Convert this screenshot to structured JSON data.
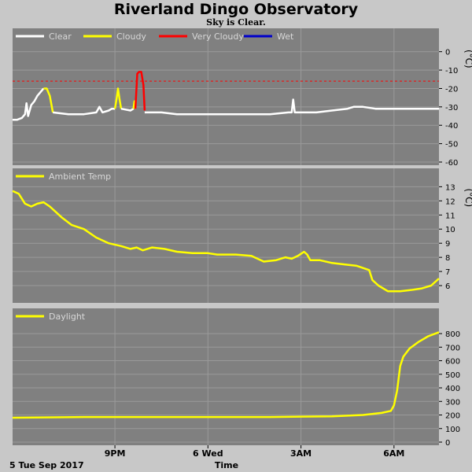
{
  "header": {
    "title": "Riverland Dingo Observatory",
    "subtitle": "Sky is Clear."
  },
  "footer": {
    "date_label": "5 Tue Sep 2017",
    "xlabel": "Time"
  },
  "x_ticks": [
    {
      "label": "9PM",
      "hour": 3
    },
    {
      "label": "6 Wed",
      "hour": 6
    },
    {
      "label": "3AM",
      "hour": 9
    },
    {
      "label": "6AM",
      "hour": 12
    }
  ],
  "x_range_hours": [
    -0.3,
    13.45
  ],
  "colors": {
    "panel_bg": "#808080",
    "grid": "#9a9a9a",
    "clear": "#ffffff",
    "cloudy": "#ffff00",
    "very_cloudy": "#ff0000",
    "wet": "#0000cc",
    "threshold": "#ff0000"
  },
  "chart_data": [
    {
      "type": "line",
      "panel": "cloud",
      "legend": [
        "Clear",
        "Cloudy",
        "Very Cloudy",
        "Wet"
      ],
      "ylabel": "(°C)",
      "ylim": [
        -60,
        5
      ],
      "yticks": [
        0,
        -10,
        -20,
        -30,
        -40,
        -50,
        -60
      ],
      "threshold": -16,
      "series": [
        {
          "name": "Clear",
          "color": "#ffffff",
          "x": [
            -0.3,
            -0.15,
            0,
            0.1,
            0.15,
            0.2,
            0.3,
            0.4,
            0.5,
            0.6,
            0.7
          ],
          "y": [
            -37,
            -37,
            -36,
            -34,
            -28,
            -35,
            -29,
            -27,
            -24,
            -22,
            -20
          ]
        },
        {
          "name": "Cloudy",
          "color": "#ffff00",
          "x": [
            0.7,
            0.8,
            0.9,
            1.0
          ],
          "y": [
            -20,
            -20,
            -24,
            -33
          ]
        },
        {
          "name": "Clear",
          "color": "#ffffff",
          "x": [
            1.0,
            1.5,
            2.0,
            2.4,
            2.5,
            2.6,
            2.8,
            2.9,
            3.0
          ],
          "y": [
            -33,
            -34,
            -34,
            -33,
            -30,
            -33,
            -32,
            -31,
            -31
          ]
        },
        {
          "name": "Cloudy",
          "color": "#ffff00",
          "x": [
            3.0,
            3.05,
            3.1,
            3.15,
            3.2
          ],
          "y": [
            -31,
            -26,
            -20,
            -26,
            -31
          ]
        },
        {
          "name": "Clear",
          "color": "#ffffff",
          "x": [
            3.2,
            3.5,
            3.6
          ],
          "y": [
            -31,
            -32,
            -31
          ]
        },
        {
          "name": "Cloudy",
          "color": "#ffff00",
          "x": [
            3.6,
            3.63,
            3.66
          ],
          "y": [
            -31,
            -27,
            -31
          ]
        },
        {
          "name": "Very Cloudy",
          "color": "#ff0000",
          "x": [
            3.66,
            3.72,
            3.78,
            3.85,
            3.92,
            3.96
          ],
          "y": [
            -31,
            -12,
            -11,
            -11,
            -18,
            -32
          ]
        },
        {
          "name": "Clear",
          "color": "#ffffff",
          "x": [
            3.96,
            4.5,
            5,
            6,
            7,
            8,
            8.6,
            8.7,
            8.75,
            8.8,
            8.9,
            9.5,
            10,
            10.5,
            10.7,
            11,
            11.4,
            12,
            12.5,
            13,
            13.45
          ],
          "y": [
            -33,
            -33,
            -34,
            -34,
            -34,
            -34,
            -33,
            -33,
            -26,
            -33,
            -33,
            -33,
            -32,
            -31,
            -30,
            -30,
            -31,
            -31,
            -31,
            -31,
            -31
          ]
        }
      ]
    },
    {
      "type": "line",
      "panel": "temperature",
      "legend": [
        "Ambient Temp"
      ],
      "ylabel": "(°C)",
      "ylim": [
        5,
        13.3
      ],
      "yticks": [
        13,
        12,
        11,
        10,
        9,
        8,
        7,
        6
      ],
      "series": [
        {
          "name": "Ambient Temp",
          "color": "#ffff00",
          "x": [
            -0.3,
            -0.1,
            0.1,
            0.3,
            0.5,
            0.7,
            0.9,
            1.1,
            1.3,
            1.6,
            2.0,
            2.4,
            2.8,
            3.2,
            3.5,
            3.7,
            3.9,
            4.2,
            4.6,
            5.0,
            5.5,
            6.0,
            6.3,
            6.6,
            6.9,
            7.4,
            7.8,
            8.2,
            8.5,
            8.7,
            8.9,
            9.1,
            9.2,
            9.3,
            9.6,
            10.0,
            10.4,
            10.8,
            11.2,
            11.3,
            11.5,
            11.8,
            12.2,
            12.6,
            12.9,
            13.2,
            13.45
          ],
          "y": [
            12.7,
            12.5,
            11.8,
            11.6,
            11.8,
            11.9,
            11.6,
            11.2,
            10.8,
            10.3,
            10.0,
            9.4,
            9.0,
            8.8,
            8.6,
            8.7,
            8.5,
            8.7,
            8.6,
            8.4,
            8.3,
            8.3,
            8.2,
            8.2,
            8.2,
            8.1,
            7.7,
            7.8,
            8.0,
            7.9,
            8.1,
            8.4,
            8.2,
            7.8,
            7.8,
            7.6,
            7.5,
            7.4,
            7.1,
            6.4,
            6.0,
            5.6,
            5.6,
            5.7,
            5.8,
            6.0,
            6.5
          ]
        }
      ]
    },
    {
      "type": "line",
      "panel": "daylight",
      "legend": [
        "Daylight"
      ],
      "ylim": [
        0,
        870
      ],
      "yticks": [
        800,
        700,
        600,
        500,
        400,
        300,
        200,
        100,
        0
      ],
      "series": [
        {
          "name": "Daylight",
          "color": "#ffff00",
          "x": [
            -0.3,
            2,
            5,
            8,
            10,
            11,
            11.6,
            11.9,
            12.0,
            12.1,
            12.2,
            12.3,
            12.5,
            12.8,
            13.1,
            13.45
          ],
          "y": [
            180,
            185,
            185,
            185,
            190,
            200,
            215,
            230,
            270,
            380,
            560,
            630,
            690,
            740,
            780,
            810
          ]
        }
      ]
    }
  ]
}
